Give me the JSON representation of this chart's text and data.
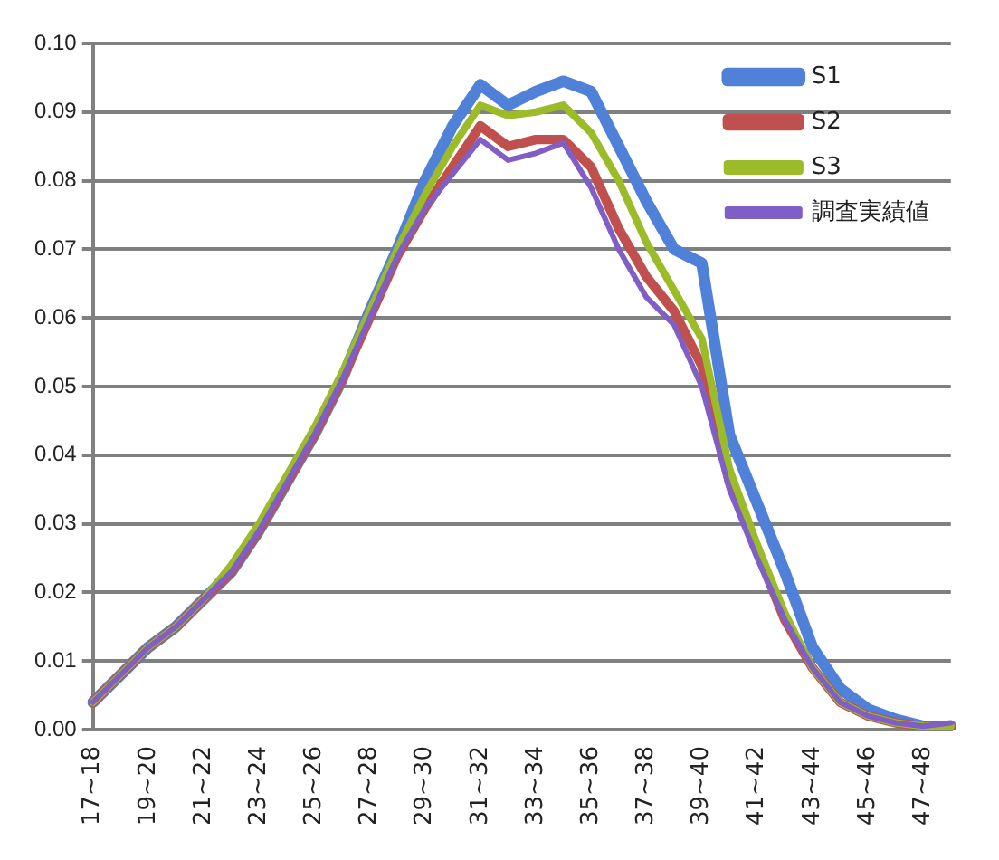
{
  "chart_data": {
    "type": "line",
    "categories": [
      "17~18",
      null,
      "19~20",
      null,
      "21~22",
      null,
      "23~24",
      null,
      "25~26",
      null,
      "27~28",
      null,
      "29~30",
      null,
      "31~32",
      null,
      "33~34",
      null,
      "35~36",
      null,
      "37~38",
      null,
      "39~40",
      null,
      "41~42",
      null,
      "43~44",
      null,
      "45~46",
      null,
      "47~48",
      null
    ],
    "series": [
      {
        "name": "S1",
        "color": "#4f81d9",
        "values": [
          0.004,
          0.008,
          0.012,
          0.015,
          0.019,
          0.023,
          0.029,
          0.036,
          0.043,
          0.051,
          0.061,
          0.07,
          0.08,
          0.088,
          0.094,
          0.091,
          0.093,
          0.0945,
          0.093,
          0.085,
          0.077,
          0.07,
          0.068,
          0.043,
          0.033,
          0.023,
          0.012,
          0.006,
          0.003,
          0.0015,
          0.0005,
          0.0005
        ]
      },
      {
        "name": "S2",
        "color": "#c0504d",
        "values": [
          0.004,
          0.008,
          0.012,
          0.015,
          0.019,
          0.023,
          0.029,
          0.036,
          0.043,
          0.051,
          0.06,
          0.069,
          0.076,
          0.082,
          0.088,
          0.085,
          0.086,
          0.086,
          0.082,
          0.073,
          0.066,
          0.061,
          0.053,
          0.036,
          0.026,
          0.016,
          0.009,
          0.004,
          0.002,
          0.001,
          0.0005,
          0.0005
        ]
      },
      {
        "name": "S3",
        "color": "#9bbb29",
        "values": [
          0.004,
          0.008,
          0.012,
          0.015,
          0.019,
          0.024,
          0.03,
          0.037,
          0.044,
          0.052,
          0.061,
          0.07,
          0.078,
          0.085,
          0.091,
          0.0895,
          0.09,
          0.091,
          0.087,
          0.08,
          0.071,
          0.064,
          0.057,
          0.038,
          0.027,
          0.017,
          0.009,
          0.004,
          0.002,
          0.001,
          0.0005,
          0.0005
        ]
      },
      {
        "name": "調査実績値",
        "color": "#7f5fc6",
        "values": [
          0.004,
          0.008,
          0.012,
          0.015,
          0.019,
          0.023,
          0.029,
          0.036,
          0.043,
          0.051,
          0.06,
          0.069,
          0.076,
          0.081,
          0.086,
          0.083,
          0.084,
          0.0855,
          0.079,
          0.07,
          0.063,
          0.059,
          0.05,
          0.035,
          0.025,
          0.016,
          0.009,
          0.004,
          0.002,
          0.001,
          0.0005,
          0.001
        ]
      }
    ],
    "ylim": [
      0,
      0.1
    ],
    "yticks": [
      {
        "value": 0,
        "label": "0.00"
      },
      {
        "value": 0.01,
        "label": "0.01"
      },
      {
        "value": 0.02,
        "label": "0.02"
      },
      {
        "value": 0.03,
        "label": "0.03"
      },
      {
        "value": 0.04,
        "label": "0.04"
      },
      {
        "value": 0.05,
        "label": "0.05"
      },
      {
        "value": 0.06,
        "label": "0.06"
      },
      {
        "value": 0.07,
        "label": "0.07"
      },
      {
        "value": 0.08,
        "label": "0.08"
      },
      {
        "value": 0.09,
        "label": "0.09"
      },
      {
        "value": 0.1,
        "label": "0.10"
      }
    ],
    "grid": "y",
    "legend": "top right",
    "marker": "none",
    "line_style": "solid"
  }
}
